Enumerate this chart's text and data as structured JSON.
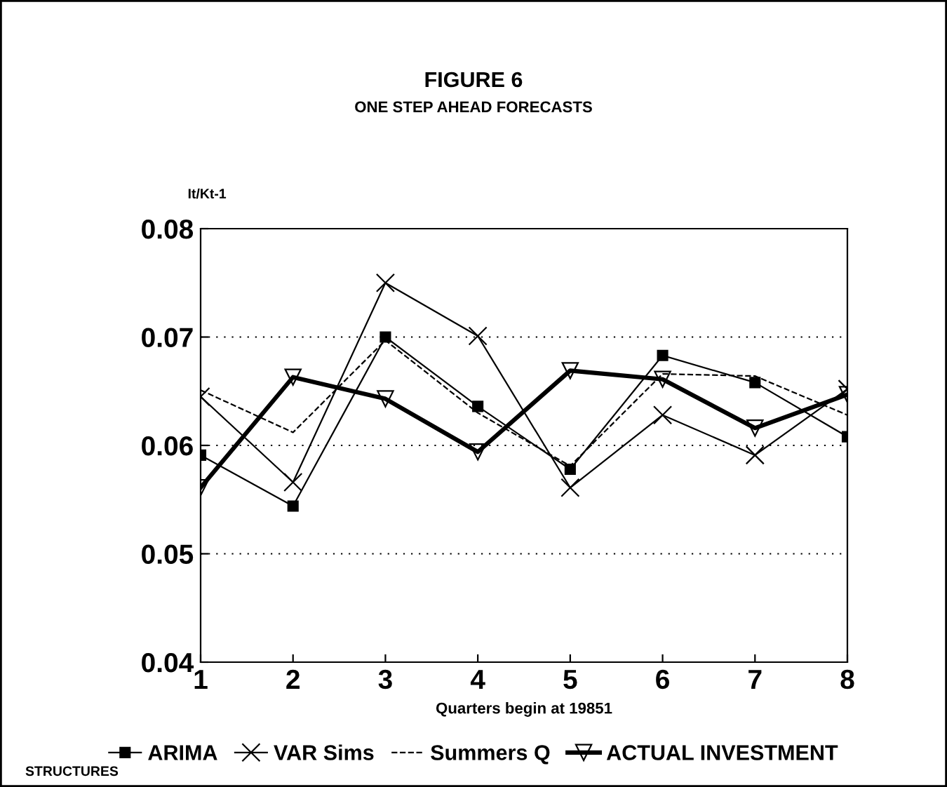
{
  "chart_data": {
    "type": "line",
    "title": "FIGURE 6",
    "subtitle": "ONE STEP AHEAD FORECASTS",
    "ylabel": "It/Kt-1",
    "xlabel": "Quarters begin at 19851",
    "x": [
      1,
      2,
      3,
      4,
      5,
      6,
      7,
      8
    ],
    "xlim": [
      1,
      8
    ],
    "xticks": [
      1,
      2,
      3,
      4,
      5,
      6,
      7,
      8
    ],
    "ylim": [
      0.04,
      0.08
    ],
    "yticks": [
      0.04,
      0.05,
      0.06,
      0.07,
      0.08
    ],
    "grid": "y",
    "legend": "bottom",
    "series": [
      {
        "name": "ARIMA",
        "color": "#000000",
        "marker": "square",
        "line_style": "solid",
        "values": [
          0.0591,
          0.0544,
          0.07,
          0.0636,
          0.0578,
          0.0683,
          0.0658,
          0.0608
        ]
      },
      {
        "name": "VAR Sims",
        "color": "#000000",
        "marker": "cross",
        "line_style": "solid",
        "values": [
          0.0645,
          0.0566,
          0.075,
          0.0701,
          0.0561,
          0.0628,
          0.0591,
          0.0652
        ]
      },
      {
        "name": "Summers Q",
        "color": "#000000",
        "marker": "none",
        "line_style": "dashed",
        "values": [
          0.0651,
          0.0612,
          0.0697,
          0.063,
          0.0581,
          0.0666,
          0.0664,
          0.0628
        ]
      },
      {
        "name": "ACTUAL INVESTMENT",
        "color": "#000000",
        "marker": "triangle",
        "line_style": "solid",
        "values": [
          0.0561,
          0.0663,
          0.0643,
          0.0594,
          0.0669,
          0.0661,
          0.0616,
          0.0647
        ]
      }
    ],
    "annotations": [
      "STRUCTURES"
    ]
  }
}
